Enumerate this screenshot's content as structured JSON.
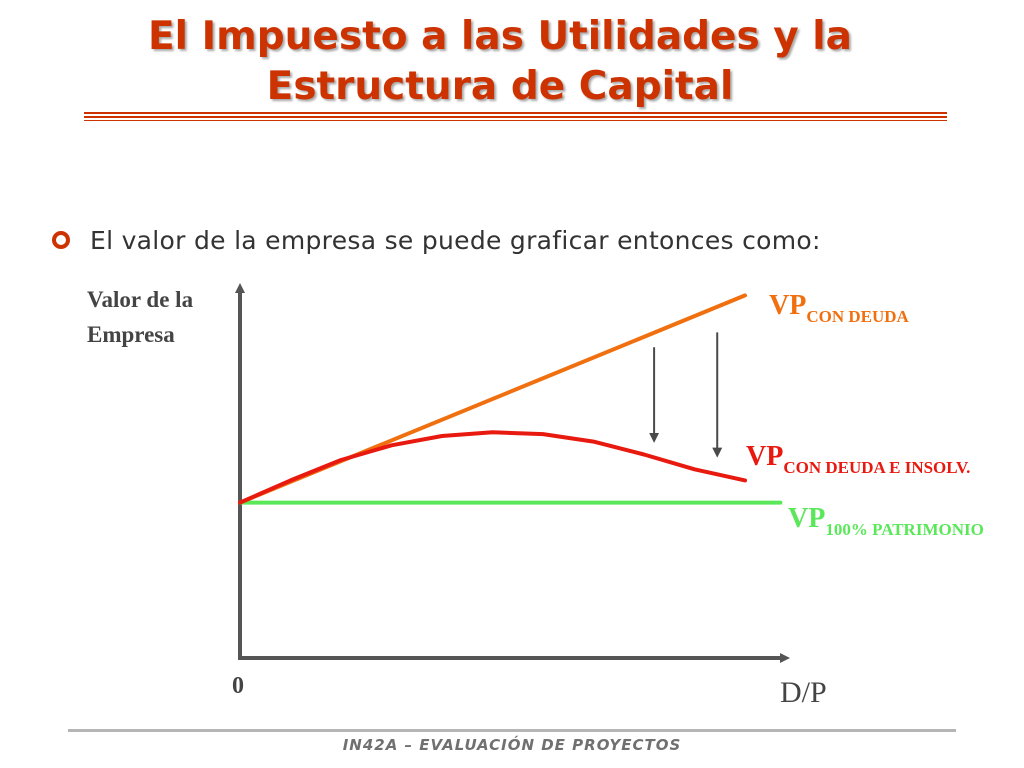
{
  "slide": {
    "title_line1": "El Impuesto a las Utilidades y la",
    "title_line2": "Estructura de Capital",
    "bullet": "El valor de la empresa se puede graficar entonces como:",
    "footer": "IN42A – EVALUACIÓN DE PROYECTOS"
  },
  "colors": {
    "title": "#cc3300",
    "con_deuda": "#f07010",
    "con_deuda_insolv": "#e8190f",
    "patrimonio": "#5ae85a",
    "axis": "#555555"
  },
  "chart_data": {
    "type": "line",
    "ylabel_line1": "Valor de la",
    "ylabel_line2": "Empresa",
    "xlabel": "D/P",
    "origin_label": "0",
    "xlim": [
      0,
      1
    ],
    "ylim": [
      0,
      1
    ],
    "series": [
      {
        "key": "con_deuda",
        "name_main": "VP",
        "name_sub": "CON DEUDA",
        "x": [
          0,
          1
        ],
        "y": [
          0.42,
          0.98
        ]
      },
      {
        "key": "con_deuda_insolv",
        "name_main": "VP",
        "name_sub": "CON DEUDA E INSOLV.",
        "x": [
          0,
          0.1,
          0.2,
          0.3,
          0.4,
          0.5,
          0.6,
          0.7,
          0.8,
          0.9,
          1.0
        ],
        "y": [
          0.42,
          0.48,
          0.535,
          0.575,
          0.6,
          0.61,
          0.605,
          0.585,
          0.55,
          0.51,
          0.48
        ]
      },
      {
        "key": "patrimonio",
        "name_main": "VP",
        "name_sub": "100% PATRIMONIO",
        "x": [
          0,
          1.07
        ],
        "y": [
          0.42,
          0.42
        ]
      }
    ],
    "annotations": [
      {
        "type": "arrow-down",
        "x": 0.82,
        "y_from": 0.84,
        "y_to": 0.595
      },
      {
        "type": "arrow-down",
        "x": 0.945,
        "y_from": 0.88,
        "y_to": 0.555
      }
    ]
  }
}
